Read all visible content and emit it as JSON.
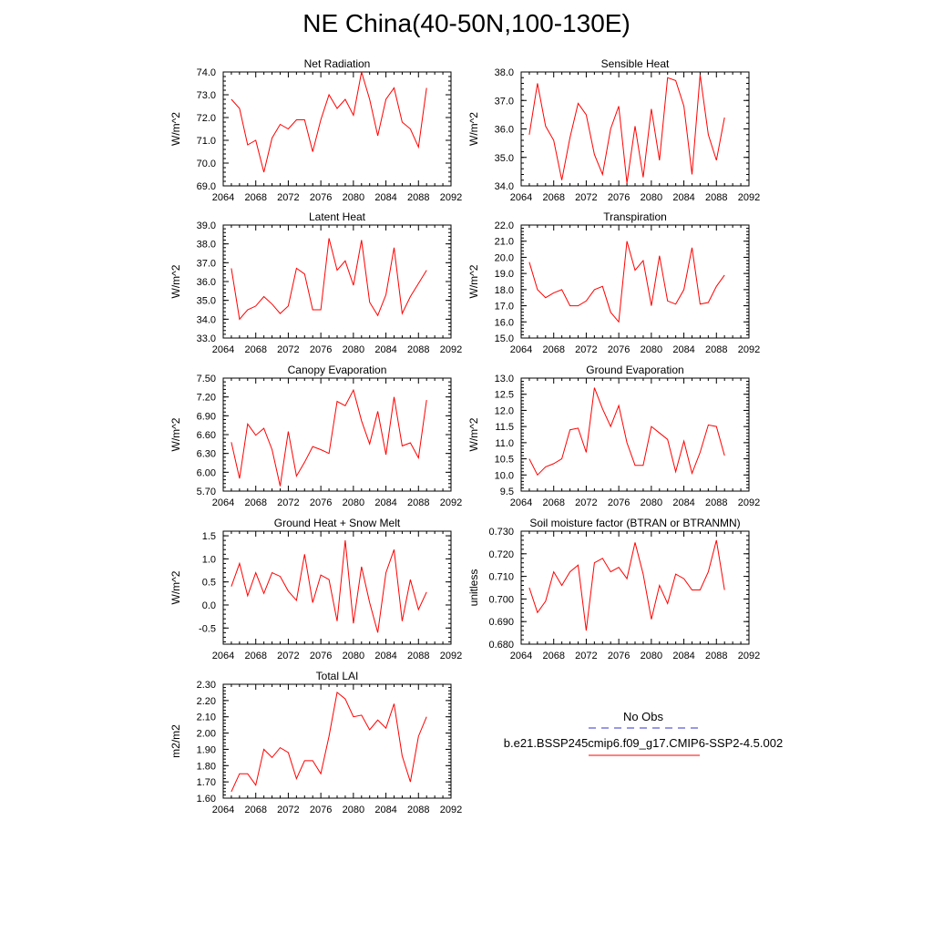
{
  "title": "NE China(40-50N,100-130E)",
  "legend": {
    "obs_label": "No Obs",
    "obs_color": "#3333cc",
    "model_label": "b.e21.BSSP245cmip6.f09_g17.CMIP6-SSP2-4.5.002",
    "model_color": "#ff0000"
  },
  "chart_data": [
    {
      "type": "line",
      "title": "Net Radiation",
      "ylabel": "W/m^2",
      "xlim": [
        2064,
        2092
      ],
      "ylim": [
        69.0,
        74.0
      ],
      "xticks": [
        "2064",
        "2068",
        "2072",
        "2076",
        "2080",
        "2084",
        "2088",
        "2092"
      ],
      "yticks": [
        "69.0",
        "70.0",
        "71.0",
        "72.0",
        "73.0",
        "74.0"
      ],
      "x": [
        2065,
        2066,
        2067,
        2068,
        2069,
        2070,
        2071,
        2072,
        2073,
        2074,
        2075,
        2076,
        2077,
        2078,
        2079,
        2080,
        2081,
        2082,
        2083,
        2084,
        2085,
        2086,
        2087,
        2088,
        2089
      ],
      "values": [
        72.8,
        72.4,
        70.8,
        71.0,
        69.6,
        71.1,
        71.7,
        71.5,
        71.9,
        71.9,
        70.5,
        71.9,
        73.0,
        72.4,
        72.8,
        72.1,
        74.0,
        72.8,
        71.2,
        72.8,
        73.3,
        71.8,
        71.5,
        70.7,
        73.3
      ]
    },
    {
      "type": "line",
      "title": "Sensible Heat",
      "ylabel": "W/m^2",
      "xlim": [
        2064,
        2092
      ],
      "ylim": [
        34.0,
        38.0
      ],
      "xticks": [
        "2064",
        "2068",
        "2072",
        "2076",
        "2080",
        "2084",
        "2088",
        "2092"
      ],
      "yticks": [
        "34.0",
        "35.0",
        "36.0",
        "37.0",
        "38.0"
      ],
      "x": [
        2065,
        2066,
        2067,
        2068,
        2069,
        2070,
        2071,
        2072,
        2073,
        2074,
        2075,
        2076,
        2077,
        2078,
        2079,
        2080,
        2081,
        2082,
        2083,
        2084,
        2085,
        2086,
        2087,
        2088,
        2089
      ],
      "values": [
        35.8,
        37.6,
        36.1,
        35.6,
        34.2,
        35.7,
        36.9,
        36.5,
        35.1,
        34.4,
        36.0,
        36.8,
        34.1,
        36.1,
        34.3,
        36.7,
        34.9,
        37.8,
        37.7,
        36.8,
        34.4,
        37.9,
        35.8,
        34.9,
        36.4
      ]
    },
    {
      "type": "line",
      "title": "Latent Heat",
      "ylabel": "W/m^2",
      "xlim": [
        2064,
        2092
      ],
      "ylim": [
        33.0,
        39.0
      ],
      "xticks": [
        "2064",
        "2068",
        "2072",
        "2076",
        "2080",
        "2084",
        "2088",
        "2092"
      ],
      "yticks": [
        "33.0",
        "34.0",
        "35.0",
        "36.0",
        "37.0",
        "38.0",
        "39.0"
      ],
      "x": [
        2065,
        2066,
        2067,
        2068,
        2069,
        2070,
        2071,
        2072,
        2073,
        2074,
        2075,
        2076,
        2077,
        2078,
        2079,
        2080,
        2081,
        2082,
        2083,
        2084,
        2085,
        2086,
        2087,
        2088,
        2089
      ],
      "values": [
        36.7,
        34.0,
        34.5,
        34.7,
        35.2,
        34.8,
        34.3,
        34.7,
        36.7,
        36.4,
        34.5,
        34.5,
        38.3,
        36.6,
        37.1,
        35.8,
        38.2,
        34.9,
        34.2,
        35.3,
        37.8,
        34.3,
        35.2,
        35.9,
        36.6
      ]
    },
    {
      "type": "line",
      "title": "Transpiration",
      "ylabel": "W/m^2",
      "xlim": [
        2064,
        2092
      ],
      "ylim": [
        15.0,
        22.0
      ],
      "xticks": [
        "2064",
        "2068",
        "2072",
        "2076",
        "2080",
        "2084",
        "2088",
        "2092"
      ],
      "yticks": [
        "15.0",
        "16.0",
        "17.0",
        "18.0",
        "19.0",
        "20.0",
        "21.0",
        "22.0"
      ],
      "x": [
        2065,
        2066,
        2067,
        2068,
        2069,
        2070,
        2071,
        2072,
        2073,
        2074,
        2075,
        2076,
        2077,
        2078,
        2079,
        2080,
        2081,
        2082,
        2083,
        2084,
        2085,
        2086,
        2087,
        2088,
        2089
      ],
      "values": [
        19.7,
        18.0,
        17.5,
        17.8,
        18.0,
        17.0,
        17.0,
        17.3,
        18.0,
        18.2,
        16.6,
        16.0,
        21.0,
        19.2,
        19.8,
        17.0,
        20.1,
        17.3,
        17.1,
        18.0,
        20.6,
        17.1,
        17.2,
        18.2,
        18.9
      ]
    },
    {
      "type": "line",
      "title": "Canopy Evaporation",
      "ylabel": "W/m^2",
      "xlim": [
        2064,
        2092
      ],
      "ylim": [
        5.7,
        7.5
      ],
      "xticks": [
        "2064",
        "2068",
        "2072",
        "2076",
        "2080",
        "2084",
        "2088",
        "2092"
      ],
      "yticks": [
        "5.70",
        "6.00",
        "6.30",
        "6.60",
        "6.90",
        "7.20",
        "7.50"
      ],
      "x": [
        2065,
        2066,
        2067,
        2068,
        2069,
        2070,
        2071,
        2072,
        2073,
        2074,
        2075,
        2076,
        2077,
        2078,
        2079,
        2080,
        2081,
        2082,
        2083,
        2084,
        2085,
        2086,
        2087,
        2088,
        2089
      ],
      "values": [
        6.48,
        5.9,
        6.77,
        6.59,
        6.7,
        6.36,
        5.78,
        6.65,
        5.94,
        6.16,
        6.41,
        6.36,
        6.3,
        7.13,
        7.06,
        7.31,
        6.82,
        6.45,
        6.97,
        6.28,
        7.2,
        6.42,
        6.47,
        6.23,
        7.15
      ]
    },
    {
      "type": "line",
      "title": "Ground Evaporation",
      "ylabel": "W/m^2",
      "xlim": [
        2064,
        2092
      ],
      "ylim": [
        9.5,
        13.0
      ],
      "xticks": [
        "2064",
        "2068",
        "2072",
        "2076",
        "2080",
        "2084",
        "2088",
        "2092"
      ],
      "yticks": [
        "9.5",
        "10.0",
        "10.5",
        "11.0",
        "11.5",
        "12.0",
        "12.5",
        "13.0"
      ],
      "x": [
        2065,
        2066,
        2067,
        2068,
        2069,
        2070,
        2071,
        2072,
        2073,
        2074,
        2075,
        2076,
        2077,
        2078,
        2079,
        2080,
        2081,
        2082,
        2083,
        2084,
        2085,
        2086,
        2087,
        2088,
        2089
      ],
      "values": [
        10.5,
        10.0,
        10.25,
        10.35,
        10.5,
        11.4,
        11.45,
        10.7,
        12.7,
        12.05,
        11.5,
        12.15,
        11.0,
        10.3,
        10.3,
        11.5,
        11.3,
        11.1,
        10.1,
        11.05,
        10.05,
        10.7,
        11.55,
        11.5,
        10.6
      ]
    },
    {
      "type": "line",
      "title": "Ground Heat + Snow Melt",
      "ylabel": "W/m^2",
      "xlim": [
        2064,
        2092
      ],
      "ylim": [
        -0.85,
        1.6
      ],
      "xticks": [
        "2064",
        "2068",
        "2072",
        "2076",
        "2080",
        "2084",
        "2088",
        "2092"
      ],
      "yticks": [
        "-0.5",
        "0.0",
        "0.5",
        "1.0",
        "1.5"
      ],
      "ytick_values": [
        -0.5,
        0.0,
        0.5,
        1.0,
        1.5
      ],
      "x": [
        2065,
        2066,
        2067,
        2068,
        2069,
        2070,
        2071,
        2072,
        2073,
        2074,
        2075,
        2076,
        2077,
        2078,
        2079,
        2080,
        2081,
        2082,
        2083,
        2084,
        2085,
        2086,
        2087,
        2088,
        2089
      ],
      "values": [
        0.4,
        0.9,
        0.2,
        0.7,
        0.25,
        0.7,
        0.62,
        0.3,
        0.1,
        1.1,
        0.05,
        0.65,
        0.55,
        -0.35,
        1.4,
        -0.4,
        0.83,
        0.05,
        -0.6,
        0.7,
        1.2,
        -0.35,
        0.55,
        -0.1,
        0.28
      ]
    },
    {
      "type": "line",
      "title": "Soil moisture factor (BTRAN or BTRANMN)",
      "ylabel": "unitless",
      "xlim": [
        2064,
        2092
      ],
      "ylim": [
        0.68,
        0.73
      ],
      "xticks": [
        "2064",
        "2068",
        "2072",
        "2076",
        "2080",
        "2084",
        "2088",
        "2092"
      ],
      "yticks": [
        "0.680",
        "0.690",
        "0.700",
        "0.710",
        "0.720",
        "0.730"
      ],
      "x": [
        2065,
        2066,
        2067,
        2068,
        2069,
        2070,
        2071,
        2072,
        2073,
        2074,
        2075,
        2076,
        2077,
        2078,
        2079,
        2080,
        2081,
        2082,
        2083,
        2084,
        2085,
        2086,
        2087,
        2088,
        2089
      ],
      "values": [
        0.705,
        0.694,
        0.699,
        0.712,
        0.706,
        0.712,
        0.715,
        0.686,
        0.716,
        0.718,
        0.712,
        0.714,
        0.709,
        0.725,
        0.711,
        0.691,
        0.706,
        0.698,
        0.711,
        0.709,
        0.704,
        0.704,
        0.712,
        0.726,
        0.704
      ]
    },
    {
      "type": "line",
      "title": "Total LAI",
      "ylabel": "m2/m2",
      "xlim": [
        2064,
        2092
      ],
      "ylim": [
        1.6,
        2.3
      ],
      "xticks": [
        "2064",
        "2068",
        "2072",
        "2076",
        "2080",
        "2084",
        "2088",
        "2092"
      ],
      "yticks": [
        "1.60",
        "1.70",
        "1.80",
        "1.90",
        "2.00",
        "2.10",
        "2.20",
        "2.30"
      ],
      "x": [
        2065,
        2066,
        2067,
        2068,
        2069,
        2070,
        2071,
        2072,
        2073,
        2074,
        2075,
        2076,
        2077,
        2078,
        2079,
        2080,
        2081,
        2082,
        2083,
        2084,
        2085,
        2086,
        2087,
        2088,
        2089
      ],
      "values": [
        1.64,
        1.75,
        1.75,
        1.68,
        1.9,
        1.85,
        1.91,
        1.88,
        1.72,
        1.83,
        1.83,
        1.75,
        1.98,
        2.25,
        2.21,
        2.1,
        2.11,
        2.02,
        2.08,
        2.03,
        2.18,
        1.86,
        1.7,
        1.98,
        2.1
      ]
    }
  ]
}
